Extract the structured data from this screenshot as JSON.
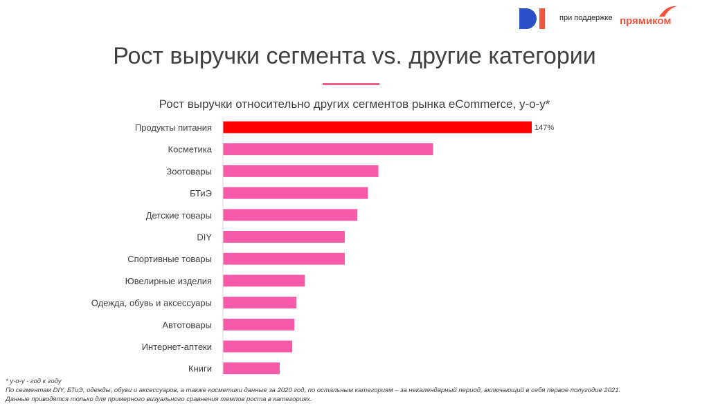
{
  "header": {
    "support_text": "при поддержке",
    "brand_name": "прямиком",
    "logo_icon": "di-logo-icon",
    "brand_icon": "swoosh-icon"
  },
  "title": "Рост выручки сегмента vs. другие категории",
  "colors": {
    "highlight": "#ff0000",
    "bar": "#f75aa8",
    "accent": "#ef5d85",
    "brand_orange": "#f0563f",
    "brand_blue": "#2b4fc7"
  },
  "chart_data": {
    "type": "bar",
    "orientation": "horizontal",
    "title": "Рост выручки относительно других сегментов рынка eCommerce, y-o-y*",
    "categories": [
      "Продукты питания",
      "Косметика",
      "Зоотовары",
      "БТиЭ",
      "Детские товары",
      "DIY",
      "Спортивные товары",
      "Ювелирные изделия",
      "Одежда, обувь и аксессуары",
      "Автотовары",
      "Интернет-аптеки",
      "Книги"
    ],
    "values": [
      147,
      100,
      74,
      69,
      64,
      58,
      58,
      39,
      35,
      34,
      33,
      27
    ],
    "value_unit": "%",
    "labels": [
      "147%",
      "",
      "",
      "",
      "",
      "",
      "",
      "",
      "",
      "",
      "",
      ""
    ],
    "highlight_index": 0,
    "xlim": [
      0,
      147
    ],
    "grid": false
  },
  "footnotes": [
    "* y-o-y - год к году",
    "По сегментам DIY, БТиЭ, одежды, обуви и аксессуаров, а также косметики данные за 2020 год, по остальным категориям – за некалендарный период, включающий в себя первое полугодие 2021.",
    "Данные приводятся только для примерного визуального сравнения темпов роста в категориях."
  ]
}
